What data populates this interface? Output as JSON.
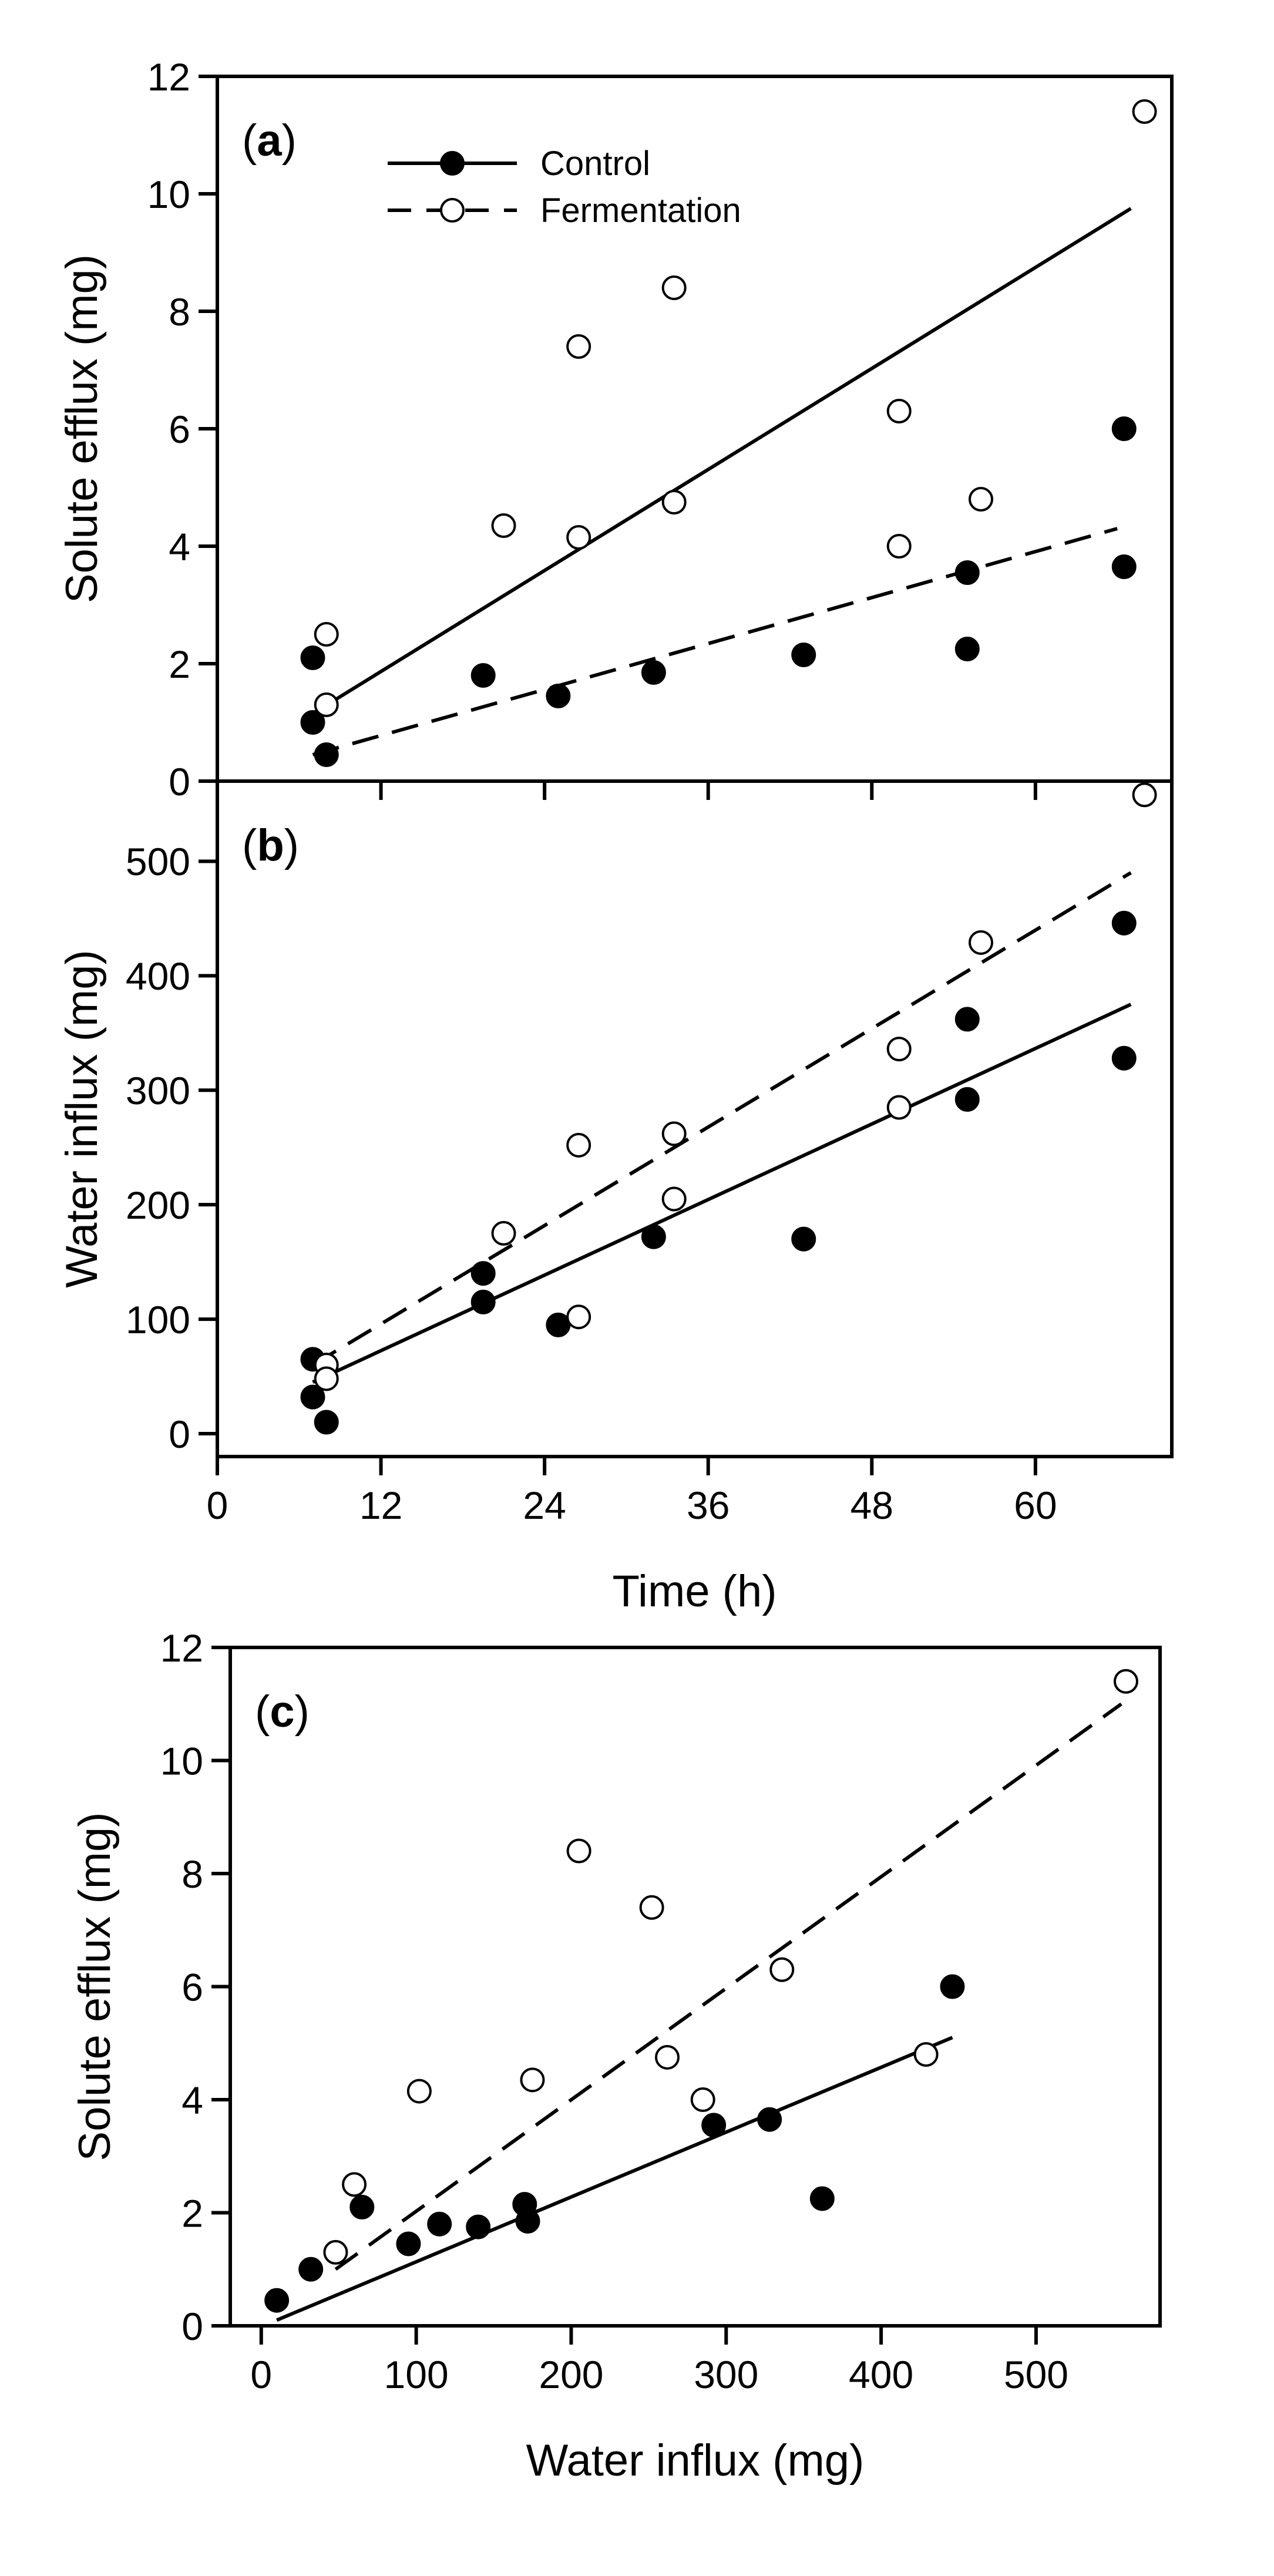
{
  "chart_data": [
    {
      "panel": "a",
      "type": "scatter",
      "label_prefix": "(",
      "label_letter": "a",
      "label_suffix": ")",
      "xlabel": "",
      "ylabel": "Solute efflux (mg)",
      "xlim": [
        0,
        70
      ],
      "ylim": [
        0,
        12
      ],
      "xticks": [
        0,
        12,
        24,
        36,
        48,
        60
      ],
      "yticks": [
        0,
        2,
        4,
        6,
        8,
        10,
        12
      ],
      "show_x_tick_labels": false,
      "legend": {
        "position": "top-left",
        "entries": [
          {
            "name": "Control",
            "marker": "filled",
            "line": "solid"
          },
          {
            "name": "Fermentation",
            "marker": "open",
            "line": "dashed"
          }
        ]
      },
      "series": [
        {
          "name": "Control",
          "marker": "filled",
          "points": [
            [
              7,
              2.1
            ],
            [
              7,
              1.0
            ],
            [
              8,
              0.45
            ],
            [
              19.5,
              1.8
            ],
            [
              25,
              1.45
            ],
            [
              32,
              1.85
            ],
            [
              43,
              2.15
            ],
            [
              55,
              2.25
            ],
            [
              55,
              3.55
            ],
            [
              66.5,
              6.0
            ],
            [
              66.5,
              3.65
            ]
          ]
        },
        {
          "name": "Fermentation",
          "marker": "open",
          "points": [
            [
              8,
              2.5
            ],
            [
              8,
              1.3
            ],
            [
              21,
              4.35
            ],
            [
              26.5,
              7.4
            ],
            [
              26.5,
              4.15
            ],
            [
              33.5,
              8.4
            ],
            [
              33.5,
              4.75
            ],
            [
              50,
              6.3
            ],
            [
              50,
              4.0
            ],
            [
              56,
              4.8
            ],
            [
              68,
              11.4
            ]
          ]
        }
      ],
      "lines": [
        {
          "style": "solid",
          "from": [
            7,
            1.15
          ],
          "to": [
            67,
            9.75
          ]
        },
        {
          "style": "dashed",
          "from": [
            7,
            0.45
          ],
          "to": [
            66,
            4.3
          ]
        }
      ]
    },
    {
      "panel": "b",
      "type": "scatter",
      "label_prefix": "(",
      "label_letter": "b",
      "label_suffix": ")",
      "xlabel": "Time (h)",
      "ylabel": "Water influx (mg)",
      "xlim": [
        0,
        70
      ],
      "ylim": [
        -20,
        570
      ],
      "xticks": [
        0,
        12,
        24,
        36,
        48,
        60
      ],
      "yticks": [
        0,
        100,
        200,
        300,
        400,
        500
      ],
      "show_x_tick_labels": true,
      "series": [
        {
          "name": "Control",
          "marker": "filled",
          "points": [
            [
              7,
              65
            ],
            [
              7,
              32
            ],
            [
              8,
              10
            ],
            [
              19.5,
              140
            ],
            [
              19.5,
              115
            ],
            [
              25,
              95
            ],
            [
              32,
              172
            ],
            [
              43,
              170
            ],
            [
              55,
              362
            ],
            [
              55,
              292
            ],
            [
              66.5,
              446
            ],
            [
              66.5,
              328
            ]
          ]
        },
        {
          "name": "Fermentation",
          "marker": "open",
          "points": [
            [
              8,
              60
            ],
            [
              8,
              48
            ],
            [
              21,
              175
            ],
            [
              26.5,
              252
            ],
            [
              26.5,
              102
            ],
            [
              33.5,
              262
            ],
            [
              33.5,
              205
            ],
            [
              50,
              336
            ],
            [
              50,
              285
            ],
            [
              56,
              429
            ],
            [
              68,
              558
            ]
          ]
        }
      ],
      "lines": [
        {
          "style": "solid",
          "from": [
            7,
            45
          ],
          "to": [
            67,
            375
          ]
        },
        {
          "style": "dashed",
          "from": [
            7,
            60
          ],
          "to": [
            67,
            490
          ]
        }
      ]
    },
    {
      "panel": "c",
      "type": "scatter",
      "label_prefix": "(",
      "label_letter": "c",
      "label_suffix": ")",
      "xlabel": "Water influx (mg)",
      "ylabel": "Solute efflux (mg)",
      "xlim": [
        -20,
        580
      ],
      "ylim": [
        0,
        12
      ],
      "xticks": [
        0,
        100,
        200,
        300,
        400,
        500
      ],
      "yticks": [
        0,
        2,
        4,
        6,
        8,
        10,
        12
      ],
      "show_x_tick_labels": true,
      "series": [
        {
          "name": "Control",
          "marker": "filled",
          "points": [
            [
              10,
              0.45
            ],
            [
              32,
              1.0
            ],
            [
              65,
              2.1
            ],
            [
              95,
              1.45
            ],
            [
              115,
              1.8
            ],
            [
              140,
              1.75
            ],
            [
              170,
              2.15
            ],
            [
              172,
              1.85
            ],
            [
              292,
              3.55
            ],
            [
              328,
              3.65
            ],
            [
              362,
              2.25
            ],
            [
              446,
              6.0
            ]
          ]
        },
        {
          "name": "Fermentation",
          "marker": "open",
          "points": [
            [
              48,
              1.3
            ],
            [
              60,
              2.5
            ],
            [
              102,
              4.15
            ],
            [
              175,
              4.35
            ],
            [
              205,
              8.4
            ],
            [
              252,
              7.4
            ],
            [
              262,
              4.75
            ],
            [
              285,
              4.0
            ],
            [
              336,
              6.3
            ],
            [
              429,
              4.8
            ],
            [
              558,
              11.4
            ]
          ]
        }
      ],
      "lines": [
        {
          "style": "solid",
          "from": [
            10,
            0.1
          ],
          "to": [
            446,
            5.1
          ]
        },
        {
          "style": "dashed",
          "from": [
            48,
            1.0
          ],
          "to": [
            555,
            11.0
          ]
        }
      ]
    }
  ]
}
